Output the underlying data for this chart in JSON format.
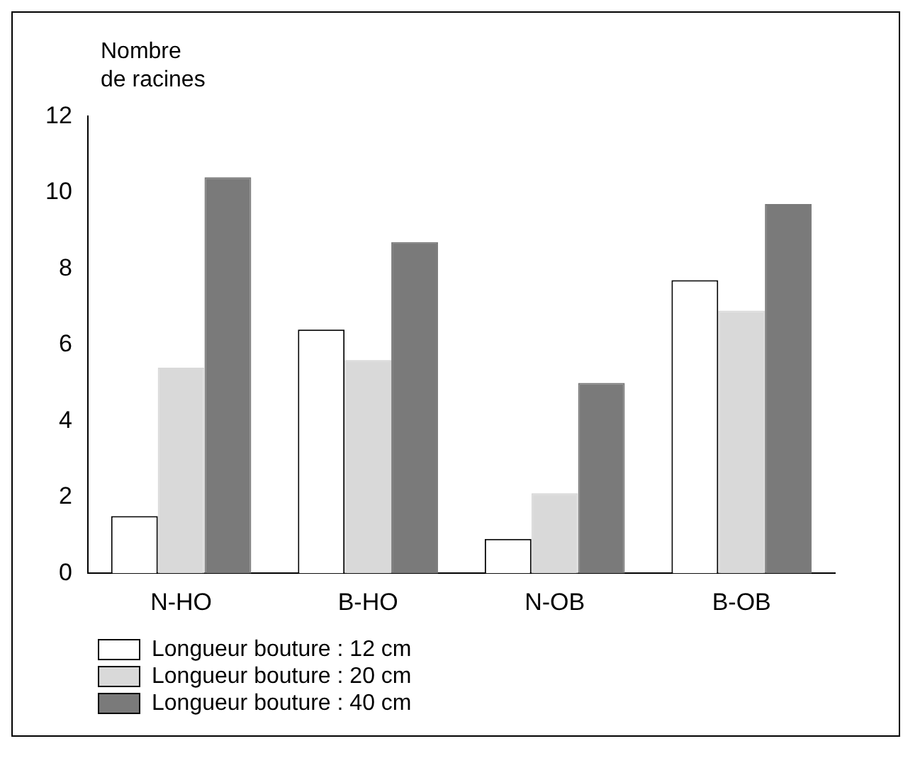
{
  "chart_data": {
    "type": "bar",
    "ylabel": "Nombre\nde racines",
    "categories": [
      "N-HO",
      "B-HO",
      "N-OB",
      "B-OB"
    ],
    "series": [
      {
        "name": "Longueur bouture : 12 cm",
        "color": "#ffffff",
        "values": [
          1.5,
          6.4,
          0.9,
          7.7
        ]
      },
      {
        "name": "Longueur bouture : 20 cm",
        "color": "#d9d9d9",
        "values": [
          5.4,
          5.6,
          2.1,
          6.9
        ]
      },
      {
        "name": "Longueur bouture : 40 cm",
        "color": "#7a7a7a",
        "values": [
          10.4,
          8.7,
          5.0,
          9.7
        ]
      }
    ],
    "ylim": [
      0,
      12
    ],
    "yticks": [
      0,
      2,
      4,
      6,
      8,
      10,
      12
    ],
    "grid": false,
    "legend": "bottom left"
  }
}
